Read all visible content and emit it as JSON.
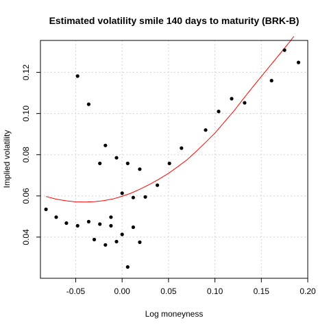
{
  "chart_data": {
    "type": "scatter",
    "title": "Estimated volatility smile 140 days to maturity (BRK-B)",
    "xlabel": "Log moneyness",
    "ylabel": "Implied volatility",
    "xlim": [
      -0.088,
      0.2
    ],
    "ylim": [
      0.02,
      0.1355
    ],
    "grid": true,
    "x_ticks": [
      -0.05,
      0.0,
      0.05,
      0.1,
      0.15,
      0.2
    ],
    "x_tick_labels": [
      "-0.05",
      "0.00",
      "0.05",
      "0.10",
      "0.15",
      "0.20"
    ],
    "y_ticks": [
      0.04,
      0.06,
      0.08,
      0.1,
      0.12
    ],
    "y_tick_labels": [
      "0.04",
      "0.06",
      "0.08",
      "0.10",
      "0.12"
    ],
    "colors": {
      "points": "#000000",
      "curve": "#ff0000",
      "grid": "#d3d3d3",
      "frame": "#000000"
    },
    "series": [
      {
        "type": "scatter",
        "x": [
          -0.082,
          -0.071,
          -0.06,
          -0.048,
          -0.048,
          -0.036,
          -0.036,
          -0.03,
          -0.024,
          -0.024,
          -0.018,
          -0.018,
          -0.012,
          -0.012,
          -0.006,
          -0.006,
          0.0,
          0.0,
          0.006,
          0.006,
          0.012,
          0.012,
          0.019,
          0.019,
          0.025,
          0.038,
          0.051,
          0.064,
          0.09,
          0.104,
          0.118,
          0.132,
          0.161,
          0.175,
          0.19
        ],
        "y": [
          0.0535,
          0.0497,
          0.0468,
          0.1182,
          0.0455,
          0.1045,
          0.0475,
          0.0388,
          0.0758,
          0.0463,
          0.0845,
          0.0362,
          0.0497,
          0.0455,
          0.0785,
          0.0378,
          0.0613,
          0.0413,
          0.0758,
          0.0255,
          0.0448,
          0.0592,
          0.073,
          0.0375,
          0.0595,
          0.0652,
          0.0758,
          0.0832,
          0.092,
          0.101,
          0.1072,
          0.1052,
          0.116,
          0.1308,
          0.1248
        ]
      },
      {
        "type": "line",
        "x": [
          -0.082,
          -0.07,
          -0.06,
          -0.05,
          -0.04,
          -0.03,
          -0.02,
          -0.01,
          0.0,
          0.01,
          0.02,
          0.03,
          0.04,
          0.05,
          0.06,
          0.07,
          0.08,
          0.09,
          0.1,
          0.11,
          0.12,
          0.13,
          0.14,
          0.15,
          0.16,
          0.17,
          0.18,
          0.185
        ],
        "y": [
          0.0597,
          0.0583,
          0.0576,
          0.0571,
          0.057,
          0.0572,
          0.0577,
          0.0585,
          0.0598,
          0.0614,
          0.0634,
          0.0657,
          0.0682,
          0.071,
          0.0742,
          0.0776,
          0.0817,
          0.086,
          0.0905,
          0.0958,
          0.101,
          0.1068,
          0.1125,
          0.118,
          0.1235,
          0.129,
          0.1345,
          0.1375
        ]
      }
    ]
  }
}
